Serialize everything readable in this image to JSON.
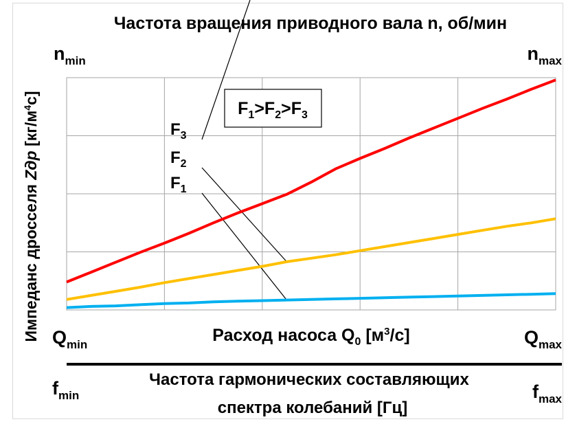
{
  "top_title": "Частота вращения приводного вала  n, об/мин",
  "n_min": {
    "main": "n",
    "sub": "min"
  },
  "n_max": {
    "main": "n",
    "sub": "max"
  },
  "y_label": {
    "prefix": "Импеданс дросселя ",
    "var": "Zдр",
    "mid": " [кг/м",
    "sup": "4",
    "suffix": "с]"
  },
  "x_label": {
    "prefix": "Расход насоса Q",
    "sub": "0",
    "mid": " [м",
    "sup": "3",
    "suffix": "/с]"
  },
  "q_min": {
    "main": "Q",
    "sub": "min"
  },
  "q_max": {
    "main": "Q",
    "sub": "max"
  },
  "f_min": {
    "main": "f",
    "sub": "min"
  },
  "f_max": {
    "main": "f",
    "sub": "max"
  },
  "bottom_title": [
    "Частота гармонических составляющих",
    "спектра колебаний [Гц]"
  ],
  "legend_box": {
    "parts": [
      [
        "F",
        "1"
      ],
      [
        ">F",
        "2"
      ],
      [
        ">F",
        "3"
      ]
    ]
  },
  "chart_data": {
    "type": "line",
    "xlabel": "Расход насоса Q0 [м3/с]",
    "ylabel": "Импеданс дросселя Zдр [кг/м4с]",
    "top_axis_label": "Частота вращения приводного вала  n, об/мин",
    "bottom_axis_label": "Частота гармонических составляющих спектра колебаний [Гц]",
    "x": [
      0,
      1,
      2,
      3,
      4,
      5,
      6,
      7,
      8,
      9,
      10,
      11,
      12,
      13,
      14,
      15,
      16,
      17,
      18,
      19,
      20
    ],
    "xlim": [
      0,
      20
    ],
    "ylim": [
      0,
      4
    ],
    "grid": true,
    "series": [
      {
        "name": "F3",
        "color": "#ff0000",
        "values": [
          0.48,
          0.65,
          0.82,
          0.99,
          1.15,
          1.32,
          1.5,
          1.67,
          1.83,
          1.99,
          2.2,
          2.43,
          2.61,
          2.78,
          2.96,
          3.13,
          3.3,
          3.47,
          3.63,
          3.8,
          3.96
        ]
      },
      {
        "name": "F2",
        "color": "#ffc000",
        "values": [
          0.18,
          0.25,
          0.32,
          0.39,
          0.47,
          0.54,
          0.61,
          0.68,
          0.75,
          0.83,
          0.89,
          0.95,
          1.02,
          1.09,
          1.16,
          1.23,
          1.3,
          1.37,
          1.44,
          1.5,
          1.57
        ]
      },
      {
        "name": "F1",
        "color": "#00b0f0",
        "values": [
          0.04,
          0.06,
          0.07,
          0.09,
          0.11,
          0.12,
          0.14,
          0.15,
          0.16,
          0.17,
          0.18,
          0.19,
          0.2,
          0.21,
          0.22,
          0.23,
          0.24,
          0.25,
          0.26,
          0.27,
          0.28
        ]
      }
    ],
    "callouts": [
      {
        "label": [
          "F",
          "3"
        ],
        "x": 7.5,
        "series": "F3"
      },
      {
        "label": [
          "F",
          "2"
        ],
        "x": 9,
        "series": "F2"
      },
      {
        "label": [
          "F",
          "1"
        ],
        "x": 9,
        "series": "F1"
      }
    ],
    "annotation": "F1>F2>F3"
  }
}
